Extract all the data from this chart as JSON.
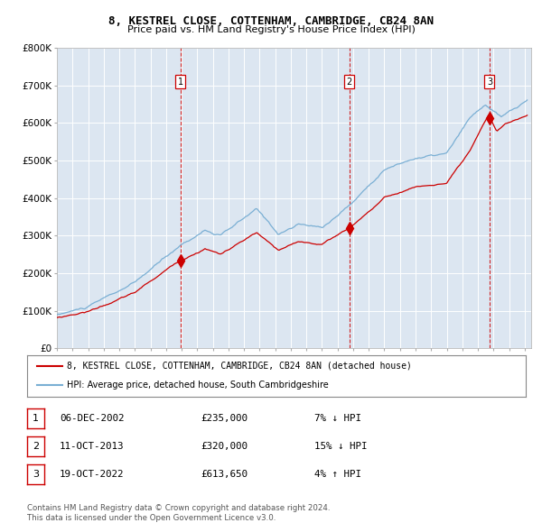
{
  "title1": "8, KESTREL CLOSE, COTTENHAM, CAMBRIDGE, CB24 8AN",
  "title2": "Price paid vs. HM Land Registry's House Price Index (HPI)",
  "legend_line1": "8, KESTREL CLOSE, COTTENHAM, CAMBRIDGE, CB24 8AN (detached house)",
  "legend_line2": "HPI: Average price, detached house, South Cambridgeshire",
  "sale_dates": [
    "2002-12-06",
    "2013-10-11",
    "2022-10-19"
  ],
  "sale_prices": [
    235000,
    320000,
    613650
  ],
  "sale_labels": [
    "1",
    "2",
    "3"
  ],
  "sale_info": [
    [
      "1",
      "06-DEC-2002",
      "£235,000",
      "7% ↓ HPI"
    ],
    [
      "2",
      "11-OCT-2013",
      "£320,000",
      "15% ↓ HPI"
    ],
    [
      "3",
      "19-OCT-2022",
      "£613,650",
      "4% ↑ HPI"
    ]
  ],
  "footer1": "Contains HM Land Registry data © Crown copyright and database right 2024.",
  "footer2": "This data is licensed under the Open Government Licence v3.0.",
  "ylim": [
    0,
    800000
  ],
  "yticks": [
    0,
    100000,
    200000,
    300000,
    400000,
    500000,
    600000,
    700000,
    800000
  ],
  "ytick_labels": [
    "£0",
    "£100K",
    "£200K",
    "£300K",
    "£400K",
    "£500K",
    "£600K",
    "£700K",
    "£800K"
  ],
  "bg_color": "#dce6f1",
  "line_color_red": "#cc0000",
  "line_color_blue": "#7aafd4",
  "dashed_line_color": "#cc0000",
  "grid_color": "#ffffff"
}
